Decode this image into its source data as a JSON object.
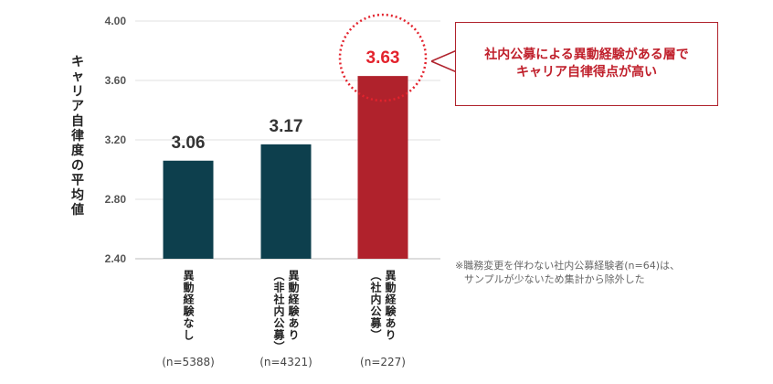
{
  "chart_data": {
    "type": "bar",
    "ylabel": "キャリア自律度の平均値",
    "ylim": [
      2.4,
      4.0
    ],
    "yticks": [
      "4.00",
      "3.60",
      "3.20",
      "2.80",
      "2.40"
    ],
    "categories": [
      {
        "lines": [
          "異動経験なし"
        ],
        "n": "(n=5388)"
      },
      {
        "lines": [
          "異動経験あり",
          "（非社内公募）"
        ],
        "n": "(n=4321)"
      },
      {
        "lines": [
          "異動経験あり",
          "（社内公募）"
        ],
        "n": "(n=227)"
      }
    ],
    "values": [
      3.06,
      3.17,
      3.63
    ],
    "value_labels": [
      "3.06",
      "3.17",
      "3.63"
    ],
    "bar_colors": [
      "#0d3f4d",
      "#0d3f4d",
      "#b0222c"
    ],
    "highlight_color": "#e3232d",
    "grid": true
  },
  "callout": {
    "line1": "社内公募による異動経験がある層で",
    "line2": "キャリア自律得点が高い"
  },
  "footnote": {
    "line1": "※職務変更を伴わない社内公募経験者(n=64)は、",
    "line2": "サンプルが少ないため集計から除外した"
  }
}
